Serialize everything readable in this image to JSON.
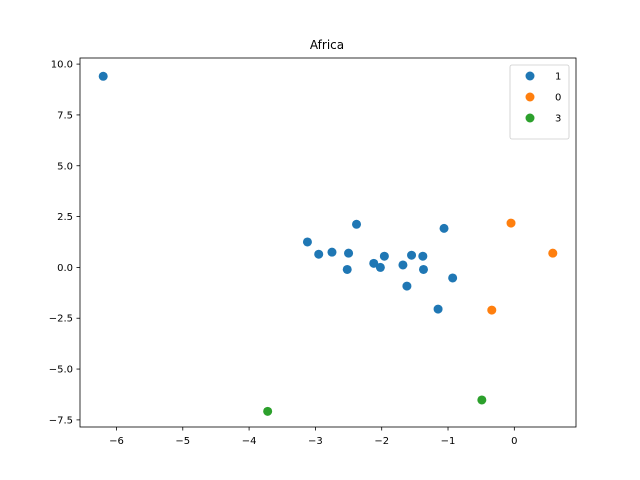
{
  "chart_data": {
    "type": "scatter",
    "title": "Africa",
    "xlabel": "",
    "ylabel": "",
    "xlim": [
      -6.55,
      0.93
    ],
    "ylim": [
      -7.85,
      10.3
    ],
    "xticks": [
      {
        "value": -6,
        "label": "−6"
      },
      {
        "value": -5,
        "label": "−5"
      },
      {
        "value": -4,
        "label": "−4"
      },
      {
        "value": -3,
        "label": "−3"
      },
      {
        "value": -2,
        "label": "−2"
      },
      {
        "value": -1,
        "label": "−1"
      },
      {
        "value": 0,
        "label": "0"
      }
    ],
    "yticks": [
      {
        "value": -7.5,
        "label": "−7.5"
      },
      {
        "value": -5.0,
        "label": "−5.0"
      },
      {
        "value": -2.5,
        "label": "−2.5"
      },
      {
        "value": 0.0,
        "label": "0.0"
      },
      {
        "value": 2.5,
        "label": "2.5"
      },
      {
        "value": 5.0,
        "label": "5.0"
      },
      {
        "value": 7.5,
        "label": "7.5"
      },
      {
        "value": 10.0,
        "label": "10.0"
      }
    ],
    "grid": false,
    "legend_position": "top-right",
    "series": [
      {
        "name": "1",
        "color": "#1f77b4",
        "points": [
          [
            -6.2,
            9.4
          ],
          [
            -3.12,
            1.25
          ],
          [
            -2.95,
            0.65
          ],
          [
            -2.75,
            0.75
          ],
          [
            -2.5,
            0.7
          ],
          [
            -2.52,
            -0.1
          ],
          [
            -2.38,
            2.12
          ],
          [
            -2.12,
            0.2
          ],
          [
            -2.02,
            0.0
          ],
          [
            -1.96,
            0.55
          ],
          [
            -1.68,
            0.12
          ],
          [
            -1.62,
            -0.92
          ],
          [
            -1.55,
            0.6
          ],
          [
            -1.38,
            0.55
          ],
          [
            -1.37,
            -0.1
          ],
          [
            -1.15,
            -2.05
          ],
          [
            -1.06,
            1.92
          ],
          [
            -0.93,
            -0.52
          ]
        ]
      },
      {
        "name": "0",
        "color": "#ff7f0e",
        "points": [
          [
            -0.05,
            2.18
          ],
          [
            -0.34,
            -2.1
          ],
          [
            0.58,
            0.7
          ]
        ]
      },
      {
        "name": "3",
        "color": "#2ca02c",
        "points": [
          [
            -3.72,
            -7.08
          ],
          [
            -0.49,
            -6.52
          ]
        ]
      }
    ]
  }
}
